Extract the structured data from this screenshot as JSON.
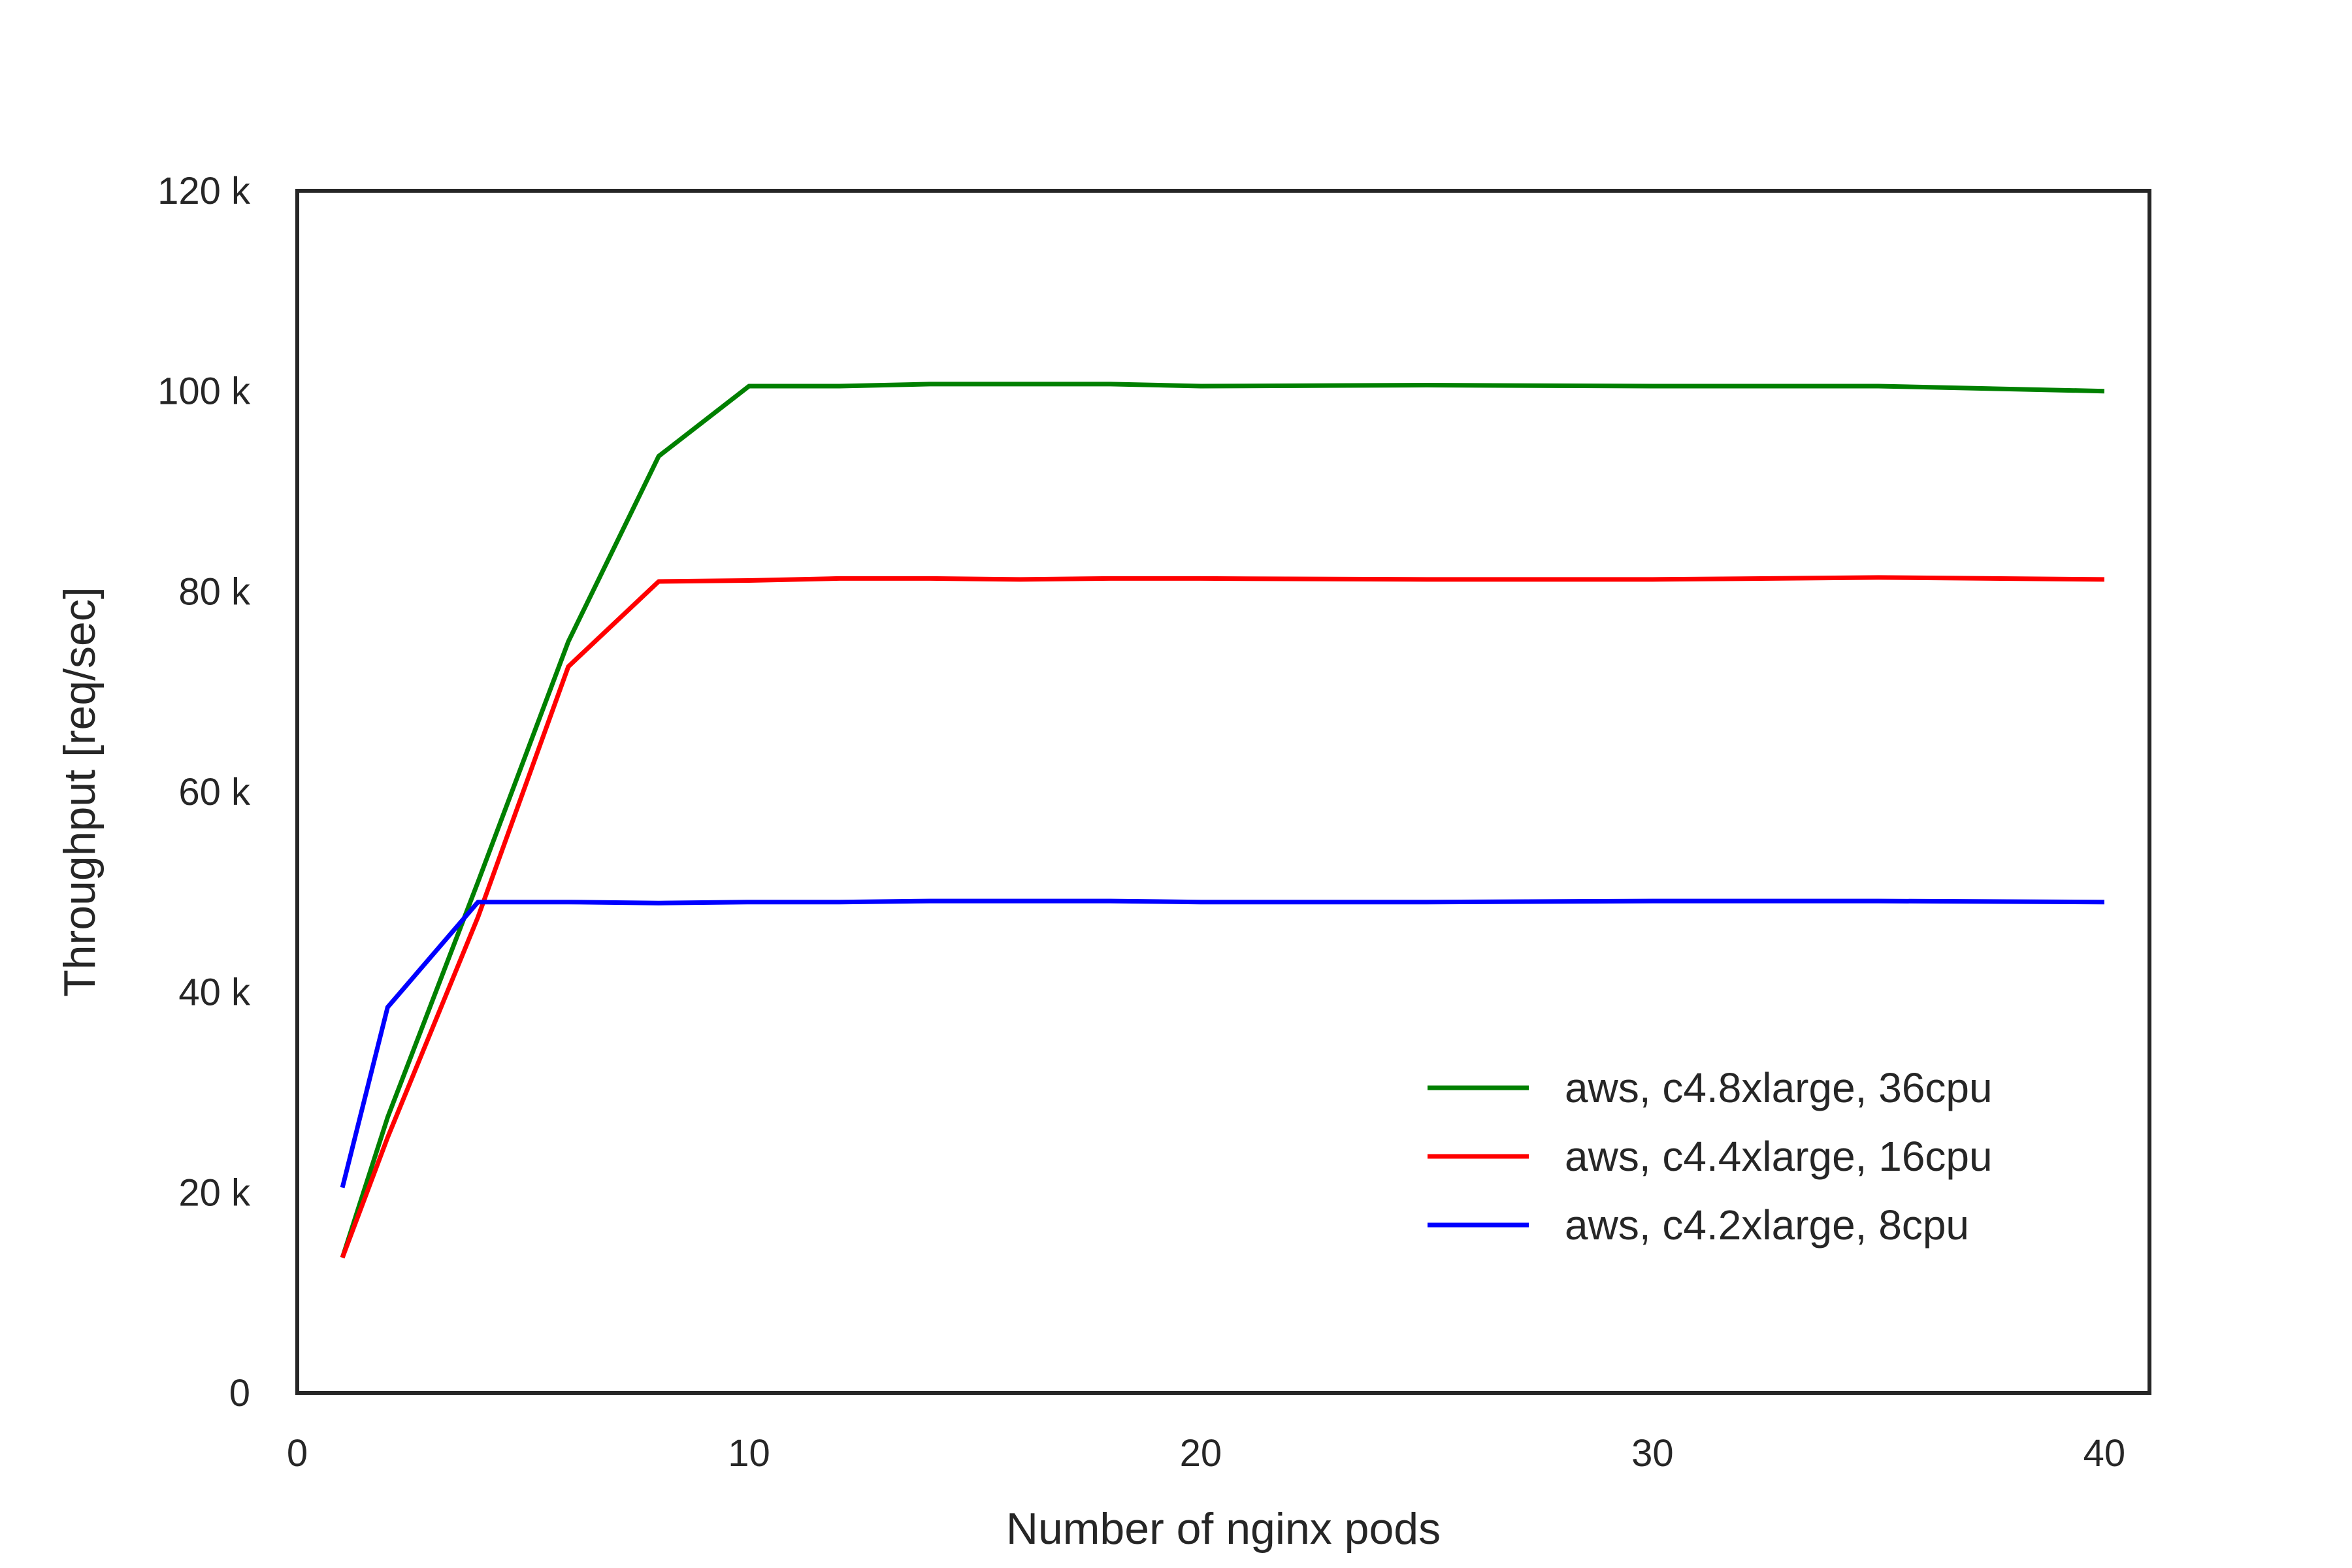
{
  "chart_data": {
    "type": "line",
    "xlabel": "Number of nginx pods",
    "ylabel": "Throughput [req/sec]",
    "xlim": [
      0,
      41
    ],
    "ylim": [
      0,
      120000
    ],
    "xticks": [
      0,
      10,
      20,
      30,
      40
    ],
    "xtick_labels": [
      "0",
      "10",
      "20",
      "30",
      "40"
    ],
    "yticks": [
      0,
      20000,
      40000,
      60000,
      80000,
      100000,
      120000
    ],
    "ytick_labels": [
      "0",
      "20 k",
      "40 k",
      "60 k",
      "80 k",
      "100 k",
      "120 k"
    ],
    "grid": false,
    "legend_position": "lower-right",
    "series": [
      {
        "name": "aws, c4.8xlarge, 36cpu",
        "color": "#008000",
        "x": [
          1,
          2,
          4,
          6,
          8,
          10,
          12,
          14,
          16,
          18,
          20,
          25,
          30,
          35,
          40
        ],
        "y": [
          13500,
          27500,
          51000,
          75000,
          93500,
          100500,
          100500,
          100700,
          100700,
          100700,
          100500,
          100600,
          100500,
          100500,
          100000
        ]
      },
      {
        "name": "aws, c4.4xlarge, 16cpu",
        "color": "#ff0000",
        "x": [
          1,
          2,
          4,
          6,
          8,
          10,
          12,
          14,
          16,
          18,
          20,
          25,
          30,
          35,
          40
        ],
        "y": [
          13500,
          25500,
          47500,
          72500,
          81000,
          81100,
          81300,
          81300,
          81200,
          81300,
          81300,
          81200,
          81200,
          81400,
          81200
        ]
      },
      {
        "name": "aws, c4.2xlarge, 8cpu",
        "color": "#0000ff",
        "x": [
          1,
          2,
          4,
          6,
          8,
          10,
          12,
          14,
          16,
          18,
          20,
          25,
          30,
          35,
          40
        ],
        "y": [
          20500,
          38500,
          49000,
          49000,
          48900,
          49000,
          49000,
          49100,
          49100,
          49100,
          49000,
          49000,
          49100,
          49100,
          49000
        ]
      }
    ]
  }
}
